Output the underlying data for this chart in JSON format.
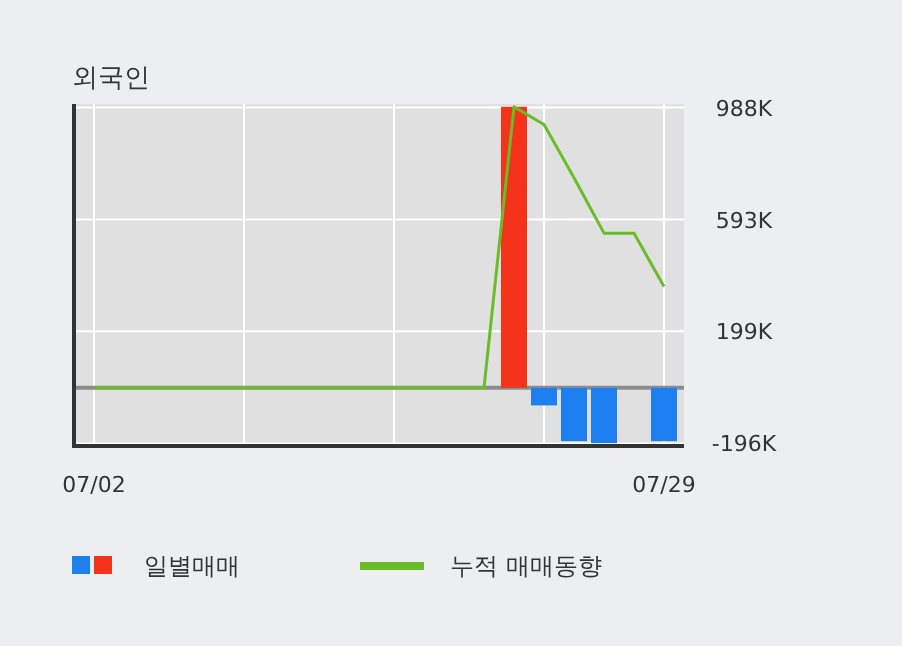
{
  "chart_data": {
    "type": "bar",
    "title": "외국인",
    "categories": [
      "07/02",
      null,
      null,
      null,
      null,
      null,
      null,
      null,
      null,
      null,
      null,
      null,
      null,
      null,
      null,
      null,
      null,
      null,
      null,
      "07/29"
    ],
    "series": [
      {
        "name": "일별매매",
        "values": [
          0,
          0,
          0,
          0,
          0,
          0,
          0,
          0,
          0,
          0,
          0,
          0,
          0,
          0,
          990000,
          -62000,
          -188000,
          -195000,
          0,
          -188000
        ],
        "colors": [
          "#1e7ff0",
          "#1e7ff0",
          "#1e7ff0",
          "#1e7ff0",
          "#1e7ff0",
          "#1e7ff0",
          "#1e7ff0",
          "#1e7ff0",
          "#1e7ff0",
          "#1e7ff0",
          "#1e7ff0",
          "#1e7ff0",
          "#1e7ff0",
          "#1e7ff0",
          "#f5321a",
          "#1e7ff0",
          "#1e7ff0",
          "#1e7ff0",
          "#1e7ff0",
          "#1e7ff0"
        ]
      },
      {
        "type": "line",
        "name": "누적 매매동향",
        "color": "#6abd28",
        "values": [
          0,
          0,
          0,
          0,
          0,
          0,
          0,
          0,
          0,
          0,
          0,
          0,
          0,
          0,
          990000,
          928000,
          740000,
          545000,
          545000,
          357000
        ]
      }
    ],
    "ylim": [
      -205000,
      1000000
    ],
    "yticks": [
      {
        "value": -196000,
        "label": "-196K"
      },
      {
        "value": 199000,
        "label": "199K"
      },
      {
        "value": 593000,
        "label": "593K"
      },
      {
        "value": 988000,
        "label": "988K"
      }
    ],
    "grid": true,
    "legend": "bottom"
  }
}
